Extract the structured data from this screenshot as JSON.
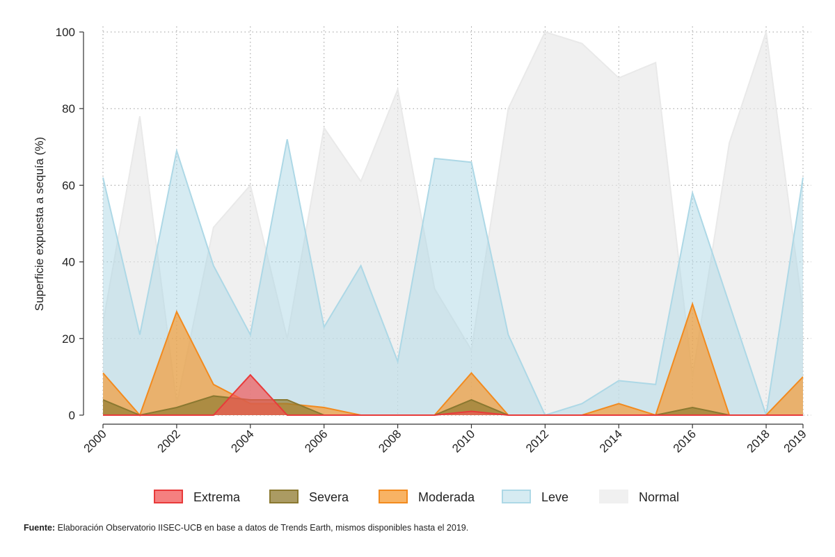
{
  "chart_data": {
    "type": "area",
    "title": "",
    "xlabel": "",
    "ylabel": "Superficie expuesta a sequía (%)",
    "ylim": [
      0,
      100
    ],
    "yticks": [
      0,
      20,
      40,
      60,
      80,
      100
    ],
    "xlim": [
      2000,
      2019
    ],
    "xticks": [
      2000,
      2002,
      2004,
      2006,
      2008,
      2010,
      2012,
      2014,
      2016,
      2018,
      2019
    ],
    "grid": true,
    "legend_position": "bottom",
    "x": [
      2000,
      2001,
      2002,
      2003,
      2004,
      2005,
      2006,
      2007,
      2008,
      2009,
      2010,
      2011,
      2012,
      2013,
      2014,
      2015,
      2016,
      2017,
      2018,
      2019
    ],
    "series": [
      {
        "name": "Normal",
        "color": "#e6e6e6",
        "stroke": "#e9e9e9",
        "values": [
          24,
          78,
          3,
          49,
          60,
          20,
          75,
          61,
          85,
          33,
          17,
          80,
          100,
          97,
          88,
          92,
          10,
          71,
          100,
          27
        ]
      },
      {
        "name": "Leve",
        "color": "#add8e6",
        "stroke": "#add8e6",
        "values": [
          62,
          21,
          69,
          39,
          21,
          72,
          23,
          39,
          14,
          67,
          66,
          21,
          0,
          3,
          9,
          8,
          58,
          29,
          0,
          62
        ]
      },
      {
        "name": "Moderada",
        "color": "#f59a30",
        "stroke": "#f28a1e",
        "values": [
          11,
          0,
          27,
          8,
          3,
          3,
          2,
          0,
          0,
          0,
          11,
          0,
          0,
          0,
          3,
          0,
          29,
          0,
          0,
          10
        ]
      },
      {
        "name": "Severa",
        "color": "#8f7a2f",
        "stroke": "#8a7830",
        "values": [
          4,
          0,
          2,
          5,
          4,
          4,
          0,
          0,
          0,
          0,
          4,
          0,
          0,
          0,
          0,
          0,
          2,
          0,
          0,
          0
        ]
      },
      {
        "name": "Extrema",
        "color": "#f25656",
        "stroke": "#e83a3a",
        "values": [
          0,
          0,
          0,
          0,
          10.5,
          0,
          0,
          0,
          0,
          0,
          1,
          0,
          0,
          0,
          0,
          0,
          0,
          0,
          0,
          0
        ]
      }
    ],
    "legend": [
      "Extrema",
      "Severa",
      "Moderada",
      "Leve",
      "Normal"
    ]
  },
  "source": {
    "label": "Fuente:",
    "text": " Elaboración Observatorio IISEC-UCB en base a datos de Trends Earth, mismos disponibles hasta el 2019."
  }
}
